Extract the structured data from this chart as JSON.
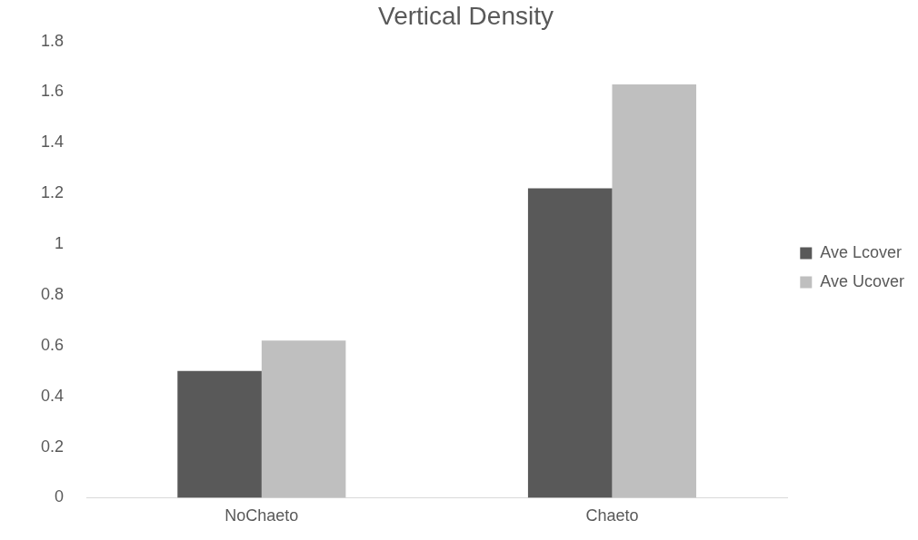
{
  "chart_data": {
    "type": "bar",
    "title": "Vertical Density",
    "categories": [
      "NoChaeto",
      "Chaeto"
    ],
    "series": [
      {
        "name": "Ave Lcover",
        "color": "#595959",
        "values": [
          0.5,
          1.22
        ]
      },
      {
        "name": "Ave Ucover",
        "color": "#bfbfbf",
        "values": [
          0.62,
          1.63
        ]
      }
    ],
    "ylim": [
      0,
      1.8
    ],
    "yticks": [
      0,
      0.2,
      0.4,
      0.6,
      0.8,
      1,
      1.2,
      1.4,
      1.6,
      1.8
    ],
    "grid": false,
    "legend": "right"
  }
}
